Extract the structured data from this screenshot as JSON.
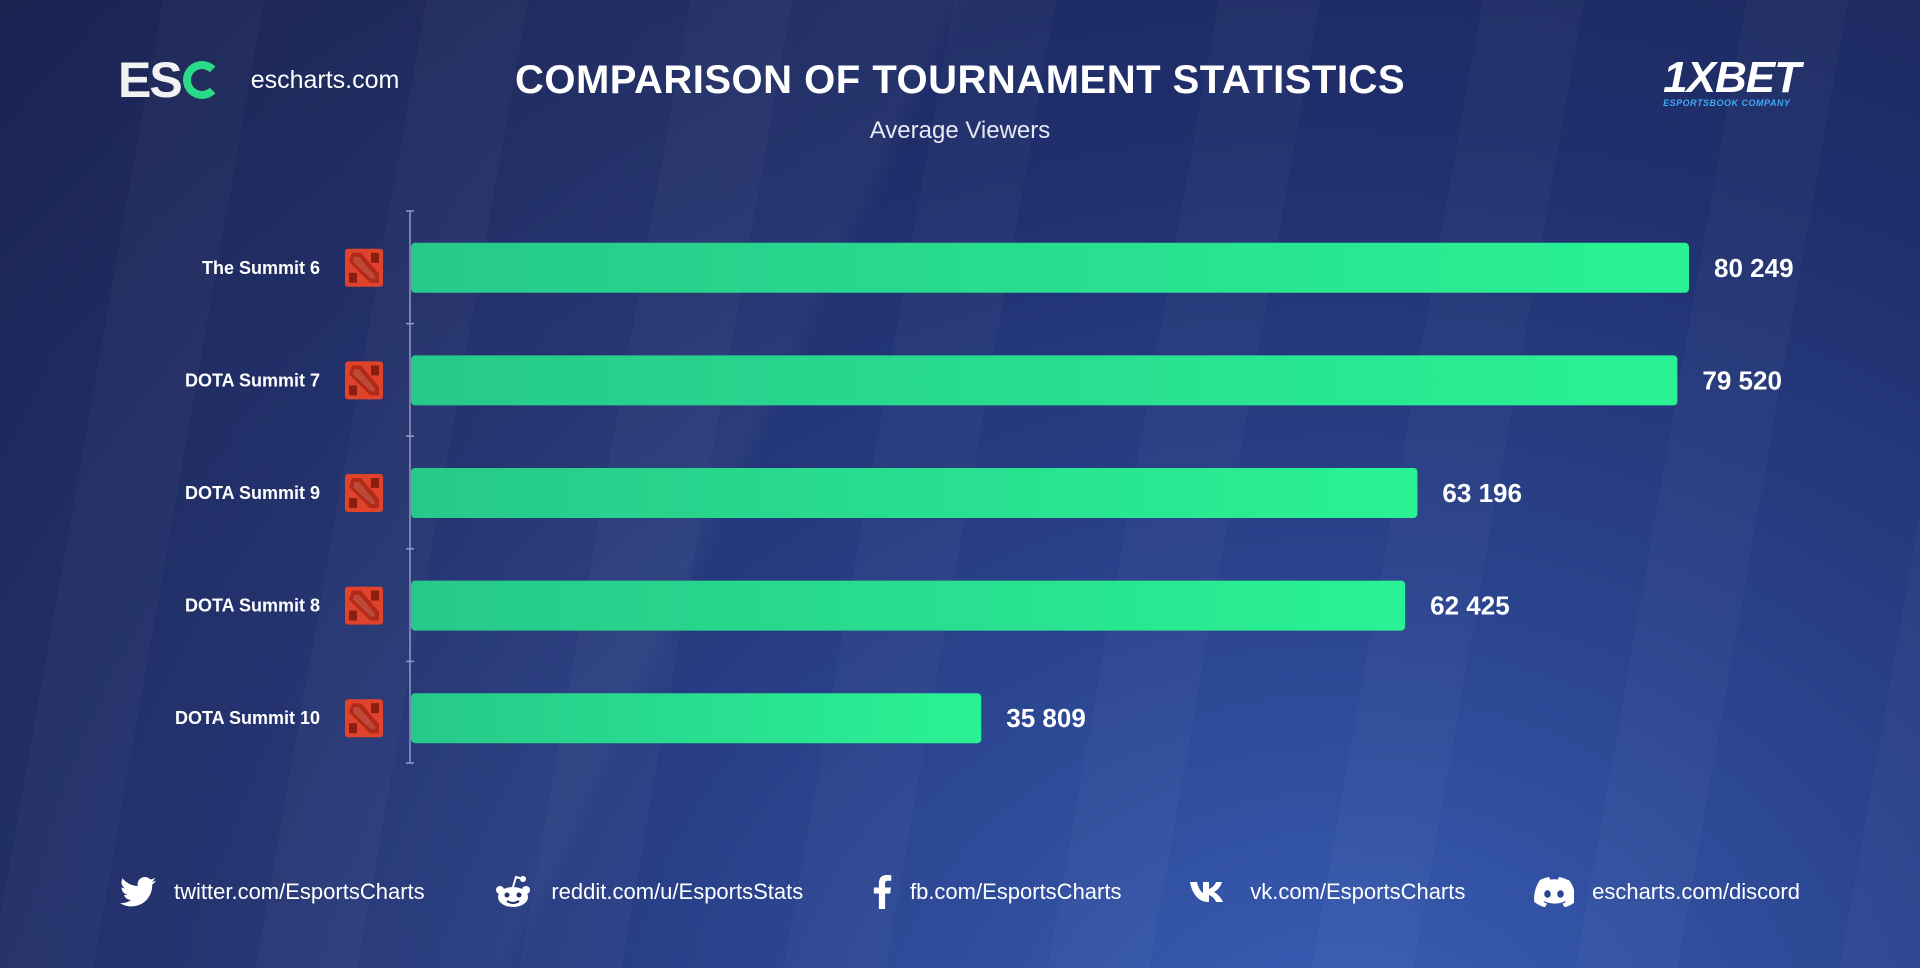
{
  "header": {
    "logo_letters": "ES",
    "site": "escharts.com",
    "title": "COMPARISON OF TOURNAMENT STATISTICS",
    "subtitle": "Average Viewers",
    "partner_name": "1XBET",
    "partner_tagline": "ESPORTSBOOK COMPANY"
  },
  "chart_data": {
    "type": "bar",
    "orientation": "horizontal",
    "categories": [
      "The Summit 6",
      "DOTA Summit 7",
      "DOTA Summit 9",
      "DOTA Summit 8",
      "DOTA Summit 10"
    ],
    "values": [
      80249,
      79520,
      63196,
      62425,
      35809
    ],
    "value_labels": [
      "80 249",
      "79 520",
      "63 196",
      "62 425",
      "35 809"
    ],
    "category_icon": "dota2-icon",
    "bar_color_start": "#27c98a",
    "bar_color_end": "#2af294",
    "grid": false,
    "legend": "none"
  },
  "footer": {
    "links": [
      {
        "icon": "twitter-icon",
        "label": "twitter.com/EsportsCharts"
      },
      {
        "icon": "reddit-icon",
        "label": "reddit.com/u/EsportsStats"
      },
      {
        "icon": "facebook-icon",
        "label": "fb.com/EsportsCharts"
      },
      {
        "icon": "vk-icon",
        "label": "vk.com/EsportsCharts"
      },
      {
        "icon": "discord-icon",
        "label": "escharts.com/discord"
      }
    ]
  },
  "colors": {
    "accent": "#2bd98a",
    "partner_accent": "#3fa9f5",
    "icon_red": "#e0432b"
  }
}
